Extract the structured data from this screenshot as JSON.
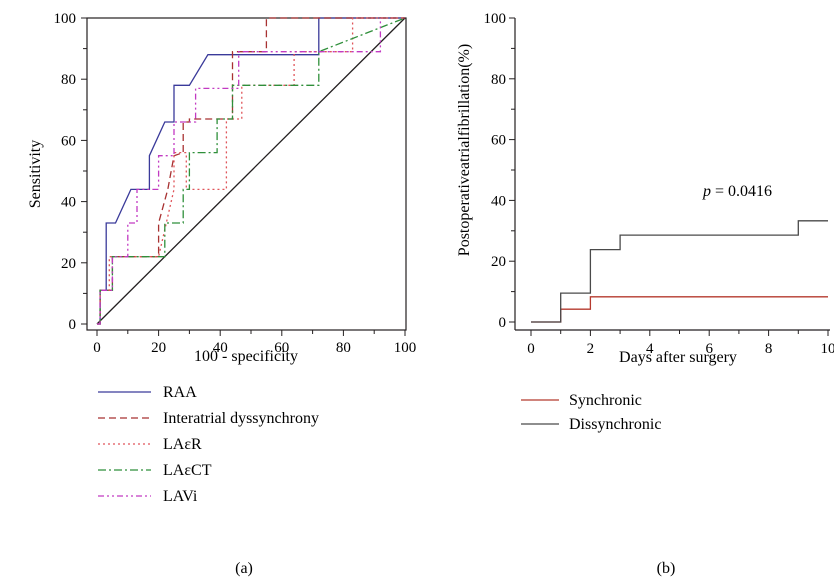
{
  "chart_data": [
    {
      "panel_label": "(a)",
      "type": "line",
      "subtype": "roc-step",
      "xlabel": "100 - specificity",
      "ylabel": "Sensitivity",
      "xlim": [
        0,
        100
      ],
      "ylim": [
        0,
        100
      ],
      "xticks": [
        "0",
        "20",
        "40",
        "60",
        "80",
        "100"
      ],
      "yticks": [
        "0",
        "20",
        "40",
        "60",
        "80",
        "100"
      ],
      "grid": false,
      "legend_position": "below",
      "reference_line": {
        "x": [
          0,
          100
        ],
        "y": [
          0,
          100
        ],
        "color": "#231f20"
      },
      "series": [
        {
          "name": "RAA",
          "color": "#3a3a9a",
          "dash": "",
          "x": [
            0,
            1,
            1,
            3,
            3,
            6,
            6,
            11,
            11,
            17,
            17,
            22,
            22,
            25,
            25,
            30,
            30,
            36,
            36,
            72,
            72,
            100
          ],
          "y": [
            0,
            0,
            11,
            11,
            33,
            33,
            33,
            44,
            44,
            44,
            55,
            66,
            66,
            66,
            78,
            78,
            78,
            88,
            88,
            88,
            100,
            100
          ]
        },
        {
          "name": "Interatrial dyssynchrony",
          "color": "#a83232",
          "dash": "7,4",
          "x": [
            0,
            1,
            1,
            5,
            5,
            20,
            20,
            23,
            25,
            28,
            28,
            30,
            30,
            44,
            44,
            55,
            55,
            100
          ],
          "y": [
            0,
            0,
            11,
            11,
            22,
            22,
            33,
            44,
            55,
            56,
            66,
            66,
            67,
            67,
            89,
            89,
            100,
            100
          ]
        },
        {
          "name": "LAεR",
          "color": "#e0555a",
          "dash": "2,3",
          "x": [
            0,
            1,
            1,
            4,
            4,
            20,
            20,
            25,
            25,
            29,
            29,
            33,
            33,
            42,
            42,
            47,
            47,
            64,
            64,
            83,
            83,
            100
          ],
          "y": [
            0,
            0,
            11,
            11,
            22,
            22,
            22,
            44,
            56,
            56,
            44,
            44,
            44,
            44,
            67,
            67,
            78,
            78,
            89,
            89,
            100,
            100
          ]
        },
        {
          "name": "LAεCT",
          "color": "#2f8f3a",
          "dash": "8,3,2,3",
          "x": [
            0,
            1,
            1,
            5,
            5,
            20,
            20,
            22,
            22,
            28,
            28,
            30,
            30,
            39,
            39,
            44,
            44,
            50,
            50,
            72,
            72,
            100
          ],
          "y": [
            0,
            0,
            11,
            11,
            22,
            22,
            22,
            22,
            33,
            33,
            44,
            44,
            56,
            56,
            67,
            67,
            78,
            78,
            78,
            78,
            89,
            100
          ]
        },
        {
          "name": "LAVi",
          "color": "#c23ac2",
          "dash": "6,3,2,3,2,3",
          "x": [
            0,
            1,
            1,
            5,
            5,
            10,
            10,
            13,
            13,
            20,
            20,
            25,
            25,
            32,
            32,
            46,
            46,
            92,
            92
          ],
          "y": [
            0,
            0,
            11,
            11,
            22,
            22,
            33,
            33,
            44,
            44,
            55,
            55,
            66,
            66,
            77,
            77,
            89,
            89,
            100
          ]
        }
      ]
    },
    {
      "panel_label": "(b)",
      "type": "line",
      "subtype": "step",
      "xlabel": "Days after surgery",
      "ylabel": "Postoperativeatrialfibrillation(%)",
      "xlim": [
        0,
        10
      ],
      "ylim": [
        0,
        100
      ],
      "xticks": [
        "0",
        "2",
        "4",
        "6",
        "8",
        "10"
      ],
      "yticks": [
        "0",
        "20",
        "40",
        "60",
        "80",
        "100"
      ],
      "grid": false,
      "legend_position": "below",
      "annotation": {
        "p_label": "p",
        "text": " = 0.0416"
      },
      "series": [
        {
          "name": "Synchronic",
          "color": "#b53a2e",
          "x": [
            0,
            1,
            1,
            2,
            2,
            10
          ],
          "y": [
            0,
            0,
            4.2,
            4.2,
            8.3,
            8.3
          ]
        },
        {
          "name": "Dissynchronic",
          "color": "#4a4a4a",
          "x": [
            0,
            1,
            1,
            2,
            2,
            3,
            3,
            9,
            9,
            10
          ],
          "y": [
            0,
            0,
            9.5,
            9.5,
            23.8,
            23.8,
            28.6,
            28.6,
            33.3,
            33.3
          ]
        }
      ]
    }
  ]
}
